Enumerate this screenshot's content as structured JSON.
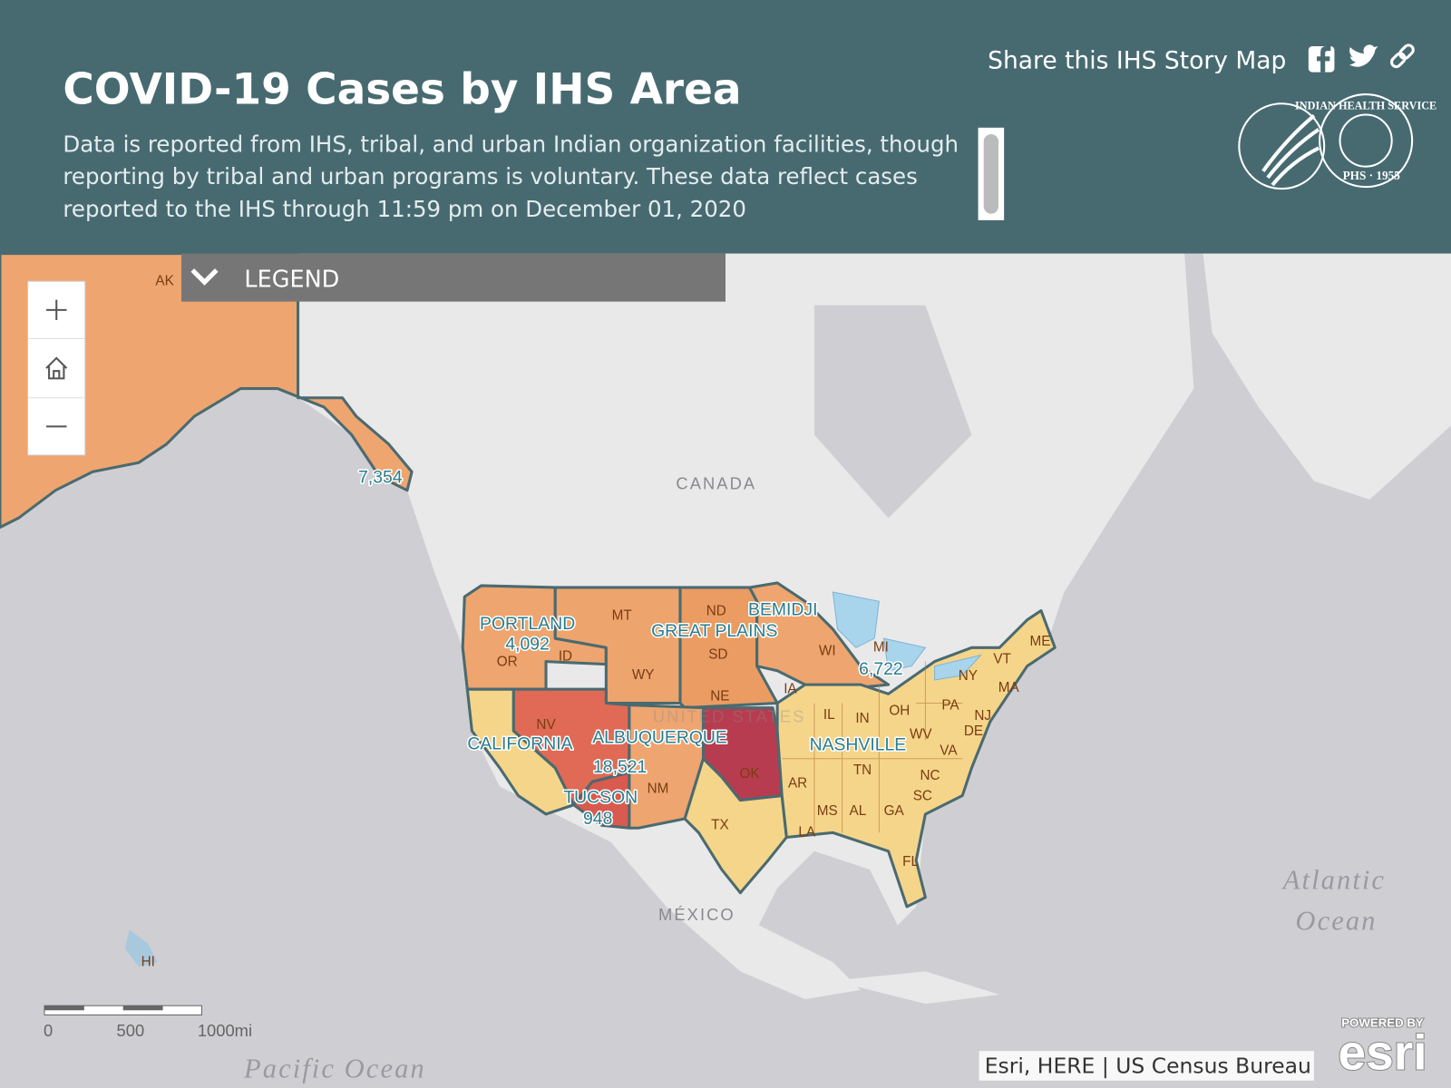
{
  "header": {
    "title": "COVID-19 Cases by IHS Area",
    "description": [
      "Data is reported from IHS, tribal, and urban Indian organization facilities, though",
      "reporting by tribal and urban programs is voluntary. These data reflect cases",
      "reported to the IHS through 11:59 pm on December 01, 2020"
    ],
    "share": "Share this IHS Story Map",
    "logo": [
      "INDIAN HEALTH SERVICE",
      "PHS · 1955"
    ]
  },
  "legend": "LEGEND",
  "map": {
    "area_names": [
      "PORTLAND",
      "BEMIDJI",
      "GREAT PLAINS",
      "CALIFORNIA",
      "ALBUQUERQUE",
      "NASHVILLE",
      "TUCSON"
    ],
    "case_counts": [
      "7,354",
      "4,092",
      "6,722",
      "18,521",
      "948"
    ],
    "states": [
      "AK",
      "OR",
      "ID",
      "MT",
      "WY",
      "ND",
      "SD",
      "NE",
      "IA",
      "WI",
      "MI",
      "NV",
      "OK",
      "NM",
      "TX",
      "AR",
      "LA",
      "MS",
      "AL",
      "GA",
      "FL",
      "TN",
      "NC",
      "SC",
      "VA",
      "WV",
      "IL",
      "IN",
      "OH",
      "PA",
      "NY",
      "VT",
      "ME",
      "MA",
      "NJ",
      "DE",
      "HI"
    ],
    "places": [
      "CANADA",
      "UNITED STATES",
      "MÉXICO"
    ],
    "oceans": [
      "Atlantic",
      "Ocean",
      "Pacific Ocean"
    ],
    "scale": [
      "0",
      "500",
      "1000mi"
    ],
    "attribution": "Esri, HERE | US Census Bureau",
    "powered": "POWERED BY",
    "brand": "esri"
  }
}
